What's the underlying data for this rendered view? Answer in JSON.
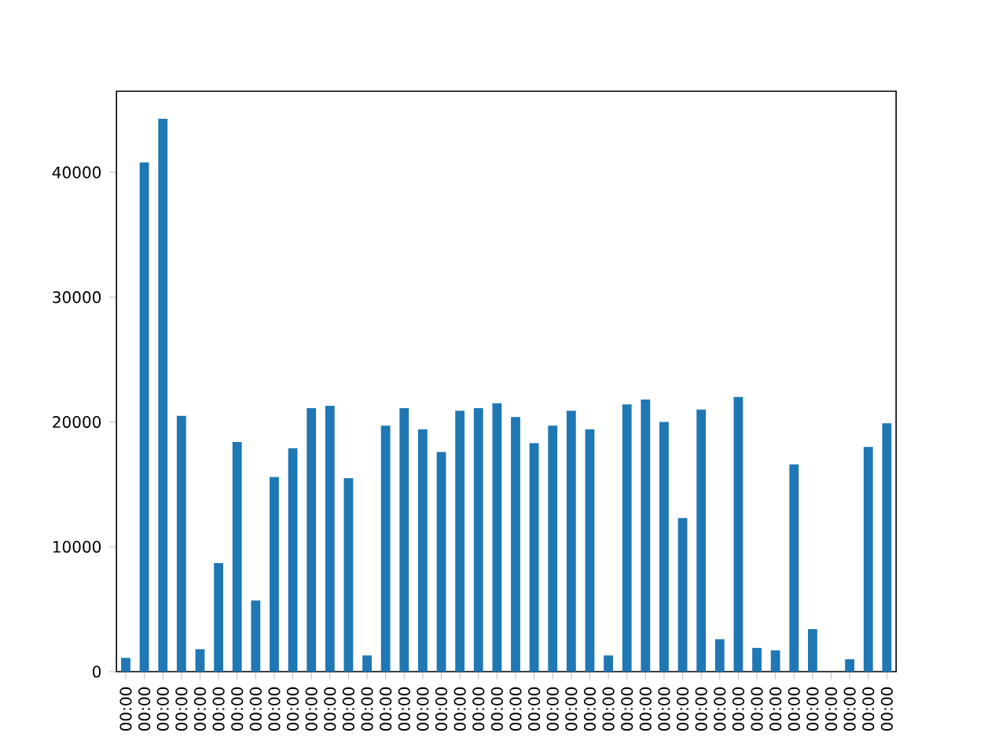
{
  "chart_data": {
    "type": "bar",
    "categories": [
      "00:00",
      "00:00",
      "00:00",
      "00:00",
      "00:00",
      "00:00",
      "00:00",
      "00:00",
      "00:00",
      "00:00",
      "00:00",
      "00:00",
      "00:00",
      "00:00",
      "00:00",
      "00:00",
      "00:00",
      "00:00",
      "00:00",
      "00:00",
      "00:00",
      "00:00",
      "00:00",
      "00:00",
      "00:00",
      "00:00",
      "00:00",
      "00:00",
      "00:00",
      "00:00",
      "00:00",
      "00:00",
      "00:00",
      "00:00",
      "00:00",
      "00:00",
      "00:00",
      "00:00",
      "00:00",
      "00:00",
      "00:00",
      "00:00"
    ],
    "values": [
      1100,
      40800,
      44300,
      20500,
      1800,
      8700,
      18400,
      5700,
      15600,
      17900,
      21100,
      21300,
      15500,
      1300,
      19700,
      21100,
      19400,
      17600,
      20900,
      21100,
      21500,
      20400,
      18300,
      19700,
      20900,
      19400,
      1300,
      21400,
      21800,
      20000,
      12300,
      21000,
      2600,
      22000,
      1900,
      1700,
      16600,
      3400,
      0,
      1000,
      18000,
      19900
    ],
    "color": "#1f77b4",
    "ylim": [
      0,
      46500
    ],
    "yticks": [
      0,
      10000,
      20000,
      30000,
      40000
    ]
  }
}
